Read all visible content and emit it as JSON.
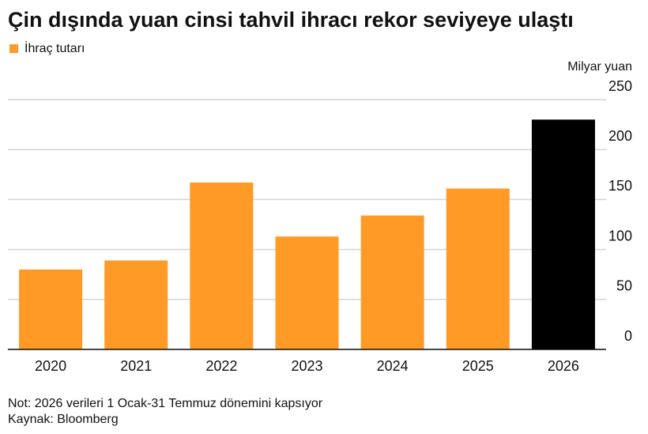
{
  "chart_data": {
    "type": "bar",
    "title": "Çin dışında yuan cinsi tahvil ihracı rekor seviyeye ulaştı",
    "legend": "İhraç tutarı",
    "y_axis_label": "Milyar yuan",
    "categories": [
      "2020",
      "2021",
      "2022",
      "2023",
      "2024",
      "2025",
      "2026"
    ],
    "values": [
      80,
      89,
      167,
      113,
      134,
      161,
      230
    ],
    "color": "#ff9a26",
    "colors": [
      "#ff9a26",
      "#ff9a26",
      "#ff9a26",
      "#ff9a26",
      "#ff9a26",
      "#ff9a26",
      "#000000"
    ],
    "ylim": [
      0,
      250
    ],
    "yticks": [
      0,
      50,
      100,
      150,
      200,
      250
    ],
    "grid": true,
    "notes": [
      "Not: 2026 verileri 1 Ocak-31 Temmuz dönemini kapsıyor",
      "Kaynak: Bloomberg"
    ]
  }
}
